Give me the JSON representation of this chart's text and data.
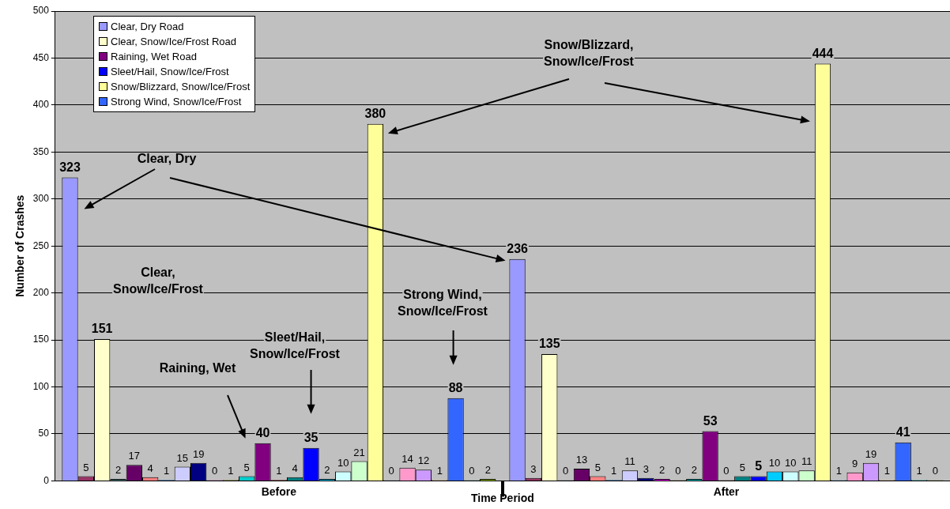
{
  "chart_data": {
    "type": "bar",
    "xlabel": "Time Period",
    "ylabel": "Number of Crashes",
    "categories": [
      "Before",
      "After"
    ],
    "series": [
      {
        "name": "Clear, Dry Road",
        "color": "#9999ff",
        "values": [
          323,
          236
        ]
      },
      {
        "color": "#993366",
        "values": [
          5,
          3
        ]
      },
      {
        "name": "Clear, Snow/Ice/Frost Road",
        "color": "#ffffcc",
        "values": [
          151,
          135
        ]
      },
      {
        "color": "#4d8080",
        "values": [
          2,
          0
        ]
      },
      {
        "color": "#660066",
        "values": [
          17,
          13
        ]
      },
      {
        "color": "#ff8080",
        "values": [
          4,
          5
        ]
      },
      {
        "color": "#0066cc",
        "values": [
          1,
          1
        ]
      },
      {
        "color": "#ccccff",
        "values": [
          15,
          11
        ]
      },
      {
        "color": "#000080",
        "values": [
          19,
          3
        ]
      },
      {
        "color": "#ff00ff",
        "values": [
          0,
          2
        ]
      },
      {
        "color": "#808000",
        "values": [
          1,
          0
        ]
      },
      {
        "color": "#00cccc",
        "values": [
          5,
          2
        ]
      },
      {
        "name": "Raining, Wet Road",
        "color": "#800080",
        "values": [
          40,
          53
        ]
      },
      {
        "color": "#800000",
        "values": [
          1,
          0
        ]
      },
      {
        "color": "#008080",
        "values": [
          4,
          5
        ]
      },
      {
        "name": "Sleet/Hail, Snow/Ice/Frost",
        "color": "#0000ff",
        "values": [
          35,
          5
        ]
      },
      {
        "color": "#00ccff",
        "values": [
          2,
          10
        ]
      },
      {
        "color": "#ccffff",
        "values": [
          10,
          10
        ]
      },
      {
        "color": "#ccffcc",
        "values": [
          21,
          11
        ]
      },
      {
        "name": "Snow/Blizzard, Snow/Ice/Frost",
        "color": "#ffff99",
        "values": [
          380,
          444
        ]
      },
      {
        "color": "#99ccff",
        "values": [
          0,
          1
        ]
      },
      {
        "color": "#ff99cc",
        "values": [
          14,
          9
        ]
      },
      {
        "color": "#cc99ff",
        "values": [
          12,
          19
        ]
      },
      {
        "color": "#ffcc99",
        "values": [
          1,
          1
        ]
      },
      {
        "name": "Strong Wind, Snow/Ice/Frost",
        "color": "#3366ff",
        "values": [
          88,
          41
        ]
      },
      {
        "color": "#33cccc",
        "values": [
          0,
          1
        ]
      },
      {
        "color": "#99cc00",
        "values": [
          2,
          0
        ]
      }
    ],
    "ylim": [
      0,
      500
    ],
    "yticks": [
      0,
      50,
      100,
      150,
      200,
      250,
      300,
      350,
      400,
      450,
      500
    ],
    "grid": "y",
    "legend": "top left",
    "data_labels": true,
    "annotations": [
      "Clear, Dry",
      "Snow/Blizzard, Snow/Ice/Frost",
      "Clear, Snow/Ice/Frost",
      "Raining, Wet",
      "Sleet/Hail, Snow/Ice/Frost",
      "Strong Wind, Snow/Ice/Frost"
    ]
  }
}
